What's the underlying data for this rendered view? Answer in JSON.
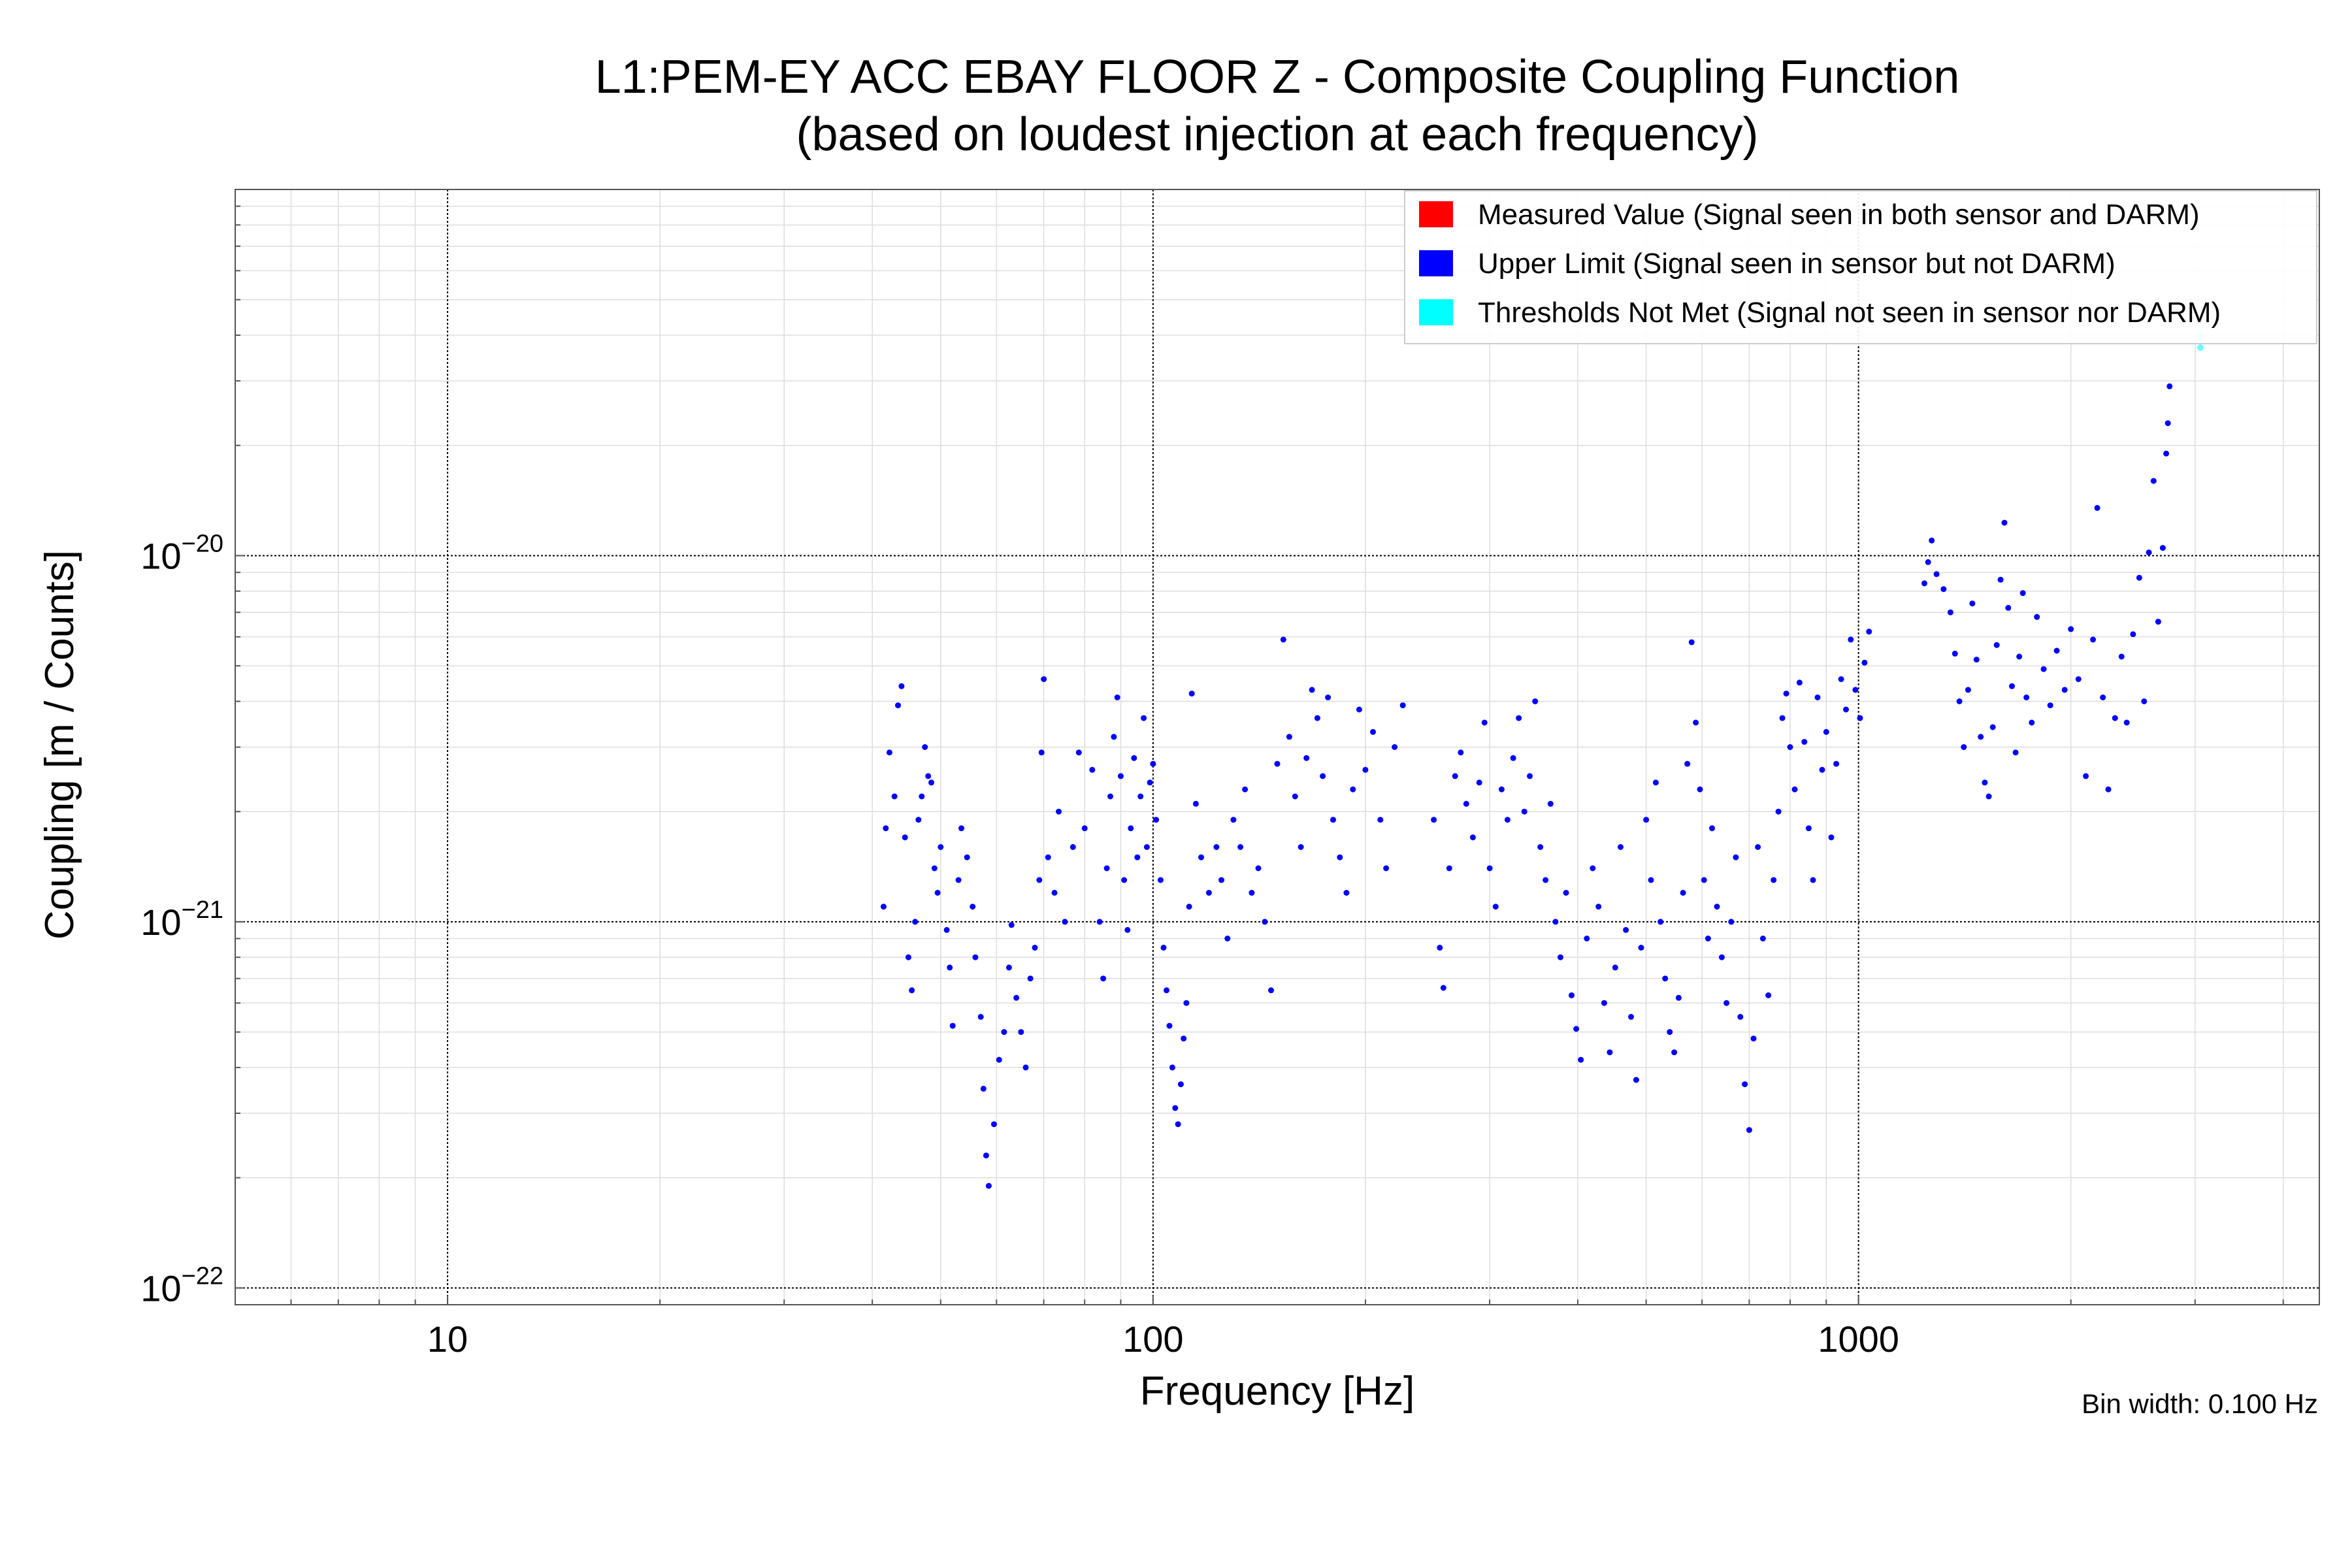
{
  "chart_data": {
    "type": "scatter",
    "title": "L1:PEM-EY ACC EBAY FLOOR Z - Composite Coupling Function",
    "subtitle": "(based on loudest injection at each frequency)",
    "xlabel": "Frequency [Hz]",
    "ylabel": "Coupling [m / Counts]",
    "xscale": "log",
    "yscale": "log",
    "xlim": [
      5,
      4500
    ],
    "ylim": [
      9e-23,
      1e-19
    ],
    "x_ticks": [
      {
        "value": 10,
        "label": "10"
      },
      {
        "value": 100,
        "label": "100"
      },
      {
        "value": 1000,
        "label": "1000"
      }
    ],
    "y_ticks": [
      {
        "value": 1e-22,
        "base": "10",
        "exp": "−22"
      },
      {
        "value": 1e-21,
        "base": "10",
        "exp": "−21"
      },
      {
        "value": 1e-20,
        "base": "10",
        "exp": "−20"
      }
    ],
    "grid": true,
    "legend_position": "top-right",
    "annotation": "Bin width: 0.100 Hz",
    "series": [
      {
        "name": "Measured Value (Signal seen in both sensor and DARM)",
        "color": "#ff0000",
        "points": []
      },
      {
        "name": "Upper Limit (Signal seen in sensor but not DARM)",
        "color": "#0000ff",
        "points": [
          [
            41.5,
            1.1e-21
          ],
          [
            41.8,
            1.8e-21
          ],
          [
            42.3,
            2.9e-21
          ],
          [
            43.0,
            2.2e-21
          ],
          [
            43.5,
            3.9e-21
          ],
          [
            44.0,
            4.4e-21
          ],
          [
            44.5,
            1.7e-21
          ],
          [
            45.0,
            8e-22
          ],
          [
            45.5,
            6.5e-22
          ],
          [
            46.0,
            1e-21
          ],
          [
            46.5,
            1.9e-21
          ],
          [
            47.0,
            2.2e-21
          ],
          [
            47.5,
            3e-21
          ],
          [
            48.0,
            2.5e-21
          ],
          [
            48.5,
            2.4e-21
          ],
          [
            49.0,
            1.4e-21
          ],
          [
            49.5,
            1.2e-21
          ],
          [
            50.0,
            1.6e-21
          ],
          [
            51.0,
            9.5e-22
          ],
          [
            51.5,
            7.5e-22
          ],
          [
            52.0,
            5.2e-22
          ],
          [
            53.0,
            1.3e-21
          ],
          [
            53.5,
            1.8e-21
          ],
          [
            54.5,
            1.5e-21
          ],
          [
            55.5,
            1.1e-21
          ],
          [
            56.0,
            8e-22
          ],
          [
            57.0,
            5.5e-22
          ],
          [
            57.5,
            3.5e-22
          ],
          [
            58.0,
            2.3e-22
          ],
          [
            58.5,
            1.9e-22
          ],
          [
            59.5,
            2.8e-22
          ],
          [
            60.5,
            4.2e-22
          ],
          [
            61.5,
            5e-22
          ],
          [
            62.5,
            7.5e-22
          ],
          [
            63.0,
            9.8e-22
          ],
          [
            64.0,
            6.2e-22
          ],
          [
            65.0,
            5e-22
          ],
          [
            66.0,
            4e-22
          ],
          [
            67.0,
            7e-22
          ],
          [
            68.0,
            8.5e-22
          ],
          [
            69.0,
            1.3e-21
          ],
          [
            69.5,
            2.9e-21
          ],
          [
            70.0,
            4.6e-21
          ],
          [
            71.0,
            1.5e-21
          ],
          [
            72.5,
            1.2e-21
          ],
          [
            73.5,
            2e-21
          ],
          [
            75.0,
            1e-21
          ],
          [
            77.0,
            1.6e-21
          ],
          [
            78.5,
            2.9e-21
          ],
          [
            80.0,
            1.8e-21
          ],
          [
            82.0,
            2.6e-21
          ],
          [
            84.0,
            1e-21
          ],
          [
            85.0,
            7e-22
          ],
          [
            86.0,
            1.4e-21
          ],
          [
            87.0,
            2.2e-21
          ],
          [
            88.0,
            3.2e-21
          ],
          [
            89.0,
            4.1e-21
          ],
          [
            90.0,
            2.5e-21
          ],
          [
            91.0,
            1.3e-21
          ],
          [
            92.0,
            9.5e-22
          ],
          [
            93.0,
            1.8e-21
          ],
          [
            94.0,
            2.8e-21
          ],
          [
            95.0,
            1.5e-21
          ],
          [
            96.0,
            2.2e-21
          ],
          [
            97.0,
            3.6e-21
          ],
          [
            98.0,
            1.6e-21
          ],
          [
            99.0,
            2.4e-21
          ],
          [
            100.0,
            2.7e-21
          ],
          [
            101.0,
            1.9e-21
          ],
          [
            102.5,
            1.3e-21
          ],
          [
            103.5,
            8.5e-22
          ],
          [
            104.5,
            6.5e-22
          ],
          [
            105.5,
            5.2e-22
          ],
          [
            106.5,
            4e-22
          ],
          [
            107.5,
            3.1e-22
          ],
          [
            108.5,
            2.8e-22
          ],
          [
            109.5,
            3.6e-22
          ],
          [
            110.5,
            4.8e-22
          ],
          [
            111.5,
            6e-22
          ],
          [
            112.5,
            1.1e-21
          ],
          [
            113.5,
            4.2e-21
          ],
          [
            115.0,
            2.1e-21
          ],
          [
            117.0,
            1.5e-21
          ],
          [
            120.0,
            1.2e-21
          ],
          [
            123.0,
            1.6e-21
          ],
          [
            125.0,
            1.3e-21
          ],
          [
            127.5,
            9e-22
          ],
          [
            130.0,
            1.9e-21
          ],
          [
            133.0,
            1.6e-21
          ],
          [
            135.0,
            2.3e-21
          ],
          [
            138.0,
            1.2e-21
          ],
          [
            141.0,
            1.4e-21
          ],
          [
            144.0,
            1e-21
          ],
          [
            147.0,
            6.5e-22
          ],
          [
            150.0,
            2.7e-21
          ],
          [
            153.0,
            5.9e-21
          ],
          [
            156.0,
            3.2e-21
          ],
          [
            159.0,
            2.2e-21
          ],
          [
            162.0,
            1.6e-21
          ],
          [
            165.0,
            2.8e-21
          ],
          [
            168.0,
            4.3e-21
          ],
          [
            171.0,
            3.6e-21
          ],
          [
            174.0,
            2.5e-21
          ],
          [
            177.0,
            4.1e-21
          ],
          [
            180.0,
            1.9e-21
          ],
          [
            184.0,
            1.5e-21
          ],
          [
            188.0,
            1.2e-21
          ],
          [
            192.0,
            2.3e-21
          ],
          [
            196.0,
            3.8e-21
          ],
          [
            200.0,
            2.6e-21
          ],
          [
            205.0,
            3.3e-21
          ],
          [
            210.0,
            1.9e-21
          ],
          [
            214.0,
            1.4e-21
          ],
          [
            220.0,
            3e-21
          ],
          [
            226.0,
            3.9e-21
          ],
          [
            250.0,
            1.9e-21
          ],
          [
            255.0,
            8.5e-22
          ],
          [
            258.0,
            6.6e-22
          ],
          [
            263.0,
            1.4e-21
          ],
          [
            268.0,
            2.5e-21
          ],
          [
            273.0,
            2.9e-21
          ],
          [
            278.0,
            2.1e-21
          ],
          [
            284.0,
            1.7e-21
          ],
          [
            290.0,
            2.4e-21
          ],
          [
            295.0,
            3.5e-21
          ],
          [
            300.0,
            1.4e-21
          ],
          [
            306.0,
            1.1e-21
          ],
          [
            312.0,
            2.3e-21
          ],
          [
            318.0,
            1.9e-21
          ],
          [
            324.0,
            2.8e-21
          ],
          [
            330.0,
            3.6e-21
          ],
          [
            336.0,
            2e-21
          ],
          [
            342.0,
            2.5e-21
          ],
          [
            348.0,
            4e-21
          ],
          [
            354.0,
            1.6e-21
          ],
          [
            360.0,
            1.3e-21
          ],
          [
            366.0,
            2.1e-21
          ],
          [
            372.0,
            1e-21
          ],
          [
            378.0,
            8e-22
          ],
          [
            385.0,
            1.2e-21
          ],
          [
            392.0,
            6.3e-22
          ],
          [
            398.0,
            5.1e-22
          ],
          [
            404.0,
            4.2e-22
          ],
          [
            412.0,
            9e-22
          ],
          [
            420.0,
            1.4e-21
          ],
          [
            428.0,
            1.1e-21
          ],
          [
            436.0,
            6e-22
          ],
          [
            444.0,
            4.4e-22
          ],
          [
            452.0,
            7.5e-22
          ],
          [
            460.0,
            1.6e-21
          ],
          [
            468.0,
            9.5e-22
          ],
          [
            476.0,
            5.5e-22
          ],
          [
            484.0,
            3.7e-22
          ],
          [
            492.0,
            8.5e-22
          ],
          [
            500.0,
            1.9e-21
          ],
          [
            508.0,
            1.3e-21
          ],
          [
            516.0,
            2.4e-21
          ],
          [
            524.0,
            1e-21
          ],
          [
            532.0,
            7e-22
          ],
          [
            540.0,
            5e-22
          ],
          [
            548.0,
            4.4e-22
          ],
          [
            556.0,
            6.2e-22
          ],
          [
            564.0,
            1.2e-21
          ],
          [
            572.0,
            2.7e-21
          ],
          [
            580.0,
            5.8e-21
          ],
          [
            588.0,
            3.5e-21
          ],
          [
            596.0,
            2.3e-21
          ],
          [
            604.0,
            1.3e-21
          ],
          [
            612.0,
            9e-22
          ],
          [
            620.0,
            1.8e-21
          ],
          [
            630.0,
            1.1e-21
          ],
          [
            640.0,
            8e-22
          ],
          [
            650.0,
            6e-22
          ],
          [
            660.0,
            1e-21
          ],
          [
            670.0,
            1.5e-21
          ],
          [
            680.0,
            5.5e-22
          ],
          [
            690.0,
            3.6e-22
          ],
          [
            700.0,
            2.7e-22
          ],
          [
            710.0,
            4.8e-22
          ],
          [
            720.0,
            1.6e-21
          ],
          [
            732.0,
            9e-22
          ],
          [
            745.0,
            6.3e-22
          ],
          [
            758.0,
            1.3e-21
          ],
          [
            770.0,
            2e-21
          ],
          [
            780.0,
            3.6e-21
          ],
          [
            790.0,
            4.2e-21
          ],
          [
            800.0,
            3e-21
          ],
          [
            812.0,
            2.3e-21
          ],
          [
            825.0,
            4.5e-21
          ],
          [
            838.0,
            3.1e-21
          ],
          [
            850.0,
            1.8e-21
          ],
          [
            862.0,
            1.3e-21
          ],
          [
            875.0,
            4.1e-21
          ],
          [
            888.0,
            2.6e-21
          ],
          [
            900.0,
            3.3e-21
          ],
          [
            915.0,
            1.7e-21
          ],
          [
            930.0,
            2.7e-21
          ],
          [
            945.0,
            4.6e-21
          ],
          [
            960.0,
            3.8e-21
          ],
          [
            975.0,
            5.9e-21
          ],
          [
            990.0,
            4.3e-21
          ],
          [
            1005.0,
            3.6e-21
          ],
          [
            1020.0,
            5.1e-21
          ],
          [
            1035.0,
            6.2e-21
          ],
          [
            1240.0,
            8.4e-21
          ],
          [
            1255.0,
            9.6e-21
          ],
          [
            1270.0,
            1.1e-20
          ],
          [
            1290.0,
            8.9e-21
          ],
          [
            1320.0,
            8.1e-21
          ],
          [
            1350.0,
            7e-21
          ],
          [
            1370.0,
            5.4e-21
          ],
          [
            1390.0,
            4e-21
          ],
          [
            1410.0,
            3e-21
          ],
          [
            1430.0,
            4.3e-21
          ],
          [
            1450.0,
            7.4e-21
          ],
          [
            1470.0,
            5.2e-21
          ],
          [
            1490.0,
            3.2e-21
          ],
          [
            1510.0,
            2.4e-21
          ],
          [
            1530.0,
            2.2e-21
          ],
          [
            1550.0,
            3.4e-21
          ],
          [
            1570.0,
            5.7e-21
          ],
          [
            1590.0,
            8.6e-21
          ],
          [
            1610.0,
            1.23e-20
          ],
          [
            1630.0,
            7.2e-21
          ],
          [
            1650.0,
            4.4e-21
          ],
          [
            1670.0,
            2.9e-21
          ],
          [
            1690.0,
            5.3e-21
          ],
          [
            1710.0,
            7.9e-21
          ],
          [
            1730.0,
            4.1e-21
          ],
          [
            1760.0,
            3.5e-21
          ],
          [
            1790.0,
            6.8e-21
          ],
          [
            1830.0,
            4.9e-21
          ],
          [
            1870.0,
            3.9e-21
          ],
          [
            1910.0,
            5.5e-21
          ],
          [
            1960.0,
            4.3e-21
          ],
          [
            2000.0,
            6.3e-21
          ],
          [
            2050.0,
            4.6e-21
          ],
          [
            2100.0,
            2.5e-21
          ],
          [
            2150.0,
            5.9e-21
          ],
          [
            2180.0,
            1.35e-20
          ],
          [
            2220.0,
            4.1e-21
          ],
          [
            2260.0,
            2.3e-21
          ],
          [
            2310.0,
            3.6e-21
          ],
          [
            2360.0,
            5.3e-21
          ],
          [
            2400.0,
            3.5e-21
          ],
          [
            2450.0,
            6.1e-21
          ],
          [
            2500.0,
            8.7e-21
          ],
          [
            2540.0,
            4e-21
          ],
          [
            2580.0,
            1.02e-20
          ],
          [
            2620.0,
            1.6e-20
          ],
          [
            2660.0,
            6.6e-21
          ],
          [
            2700.0,
            1.05e-20
          ],
          [
            2730.0,
            1.9e-20
          ],
          [
            2745.0,
            2.3e-20
          ],
          [
            2760.0,
            2.9e-20
          ]
        ]
      },
      {
        "name": "Thresholds Not Met (Signal not seen in sensor nor DARM)",
        "color": "#00ffff",
        "points": [
          [
            3050,
            4e-20
          ],
          [
            3052,
            3.7e-20
          ]
        ]
      }
    ]
  }
}
